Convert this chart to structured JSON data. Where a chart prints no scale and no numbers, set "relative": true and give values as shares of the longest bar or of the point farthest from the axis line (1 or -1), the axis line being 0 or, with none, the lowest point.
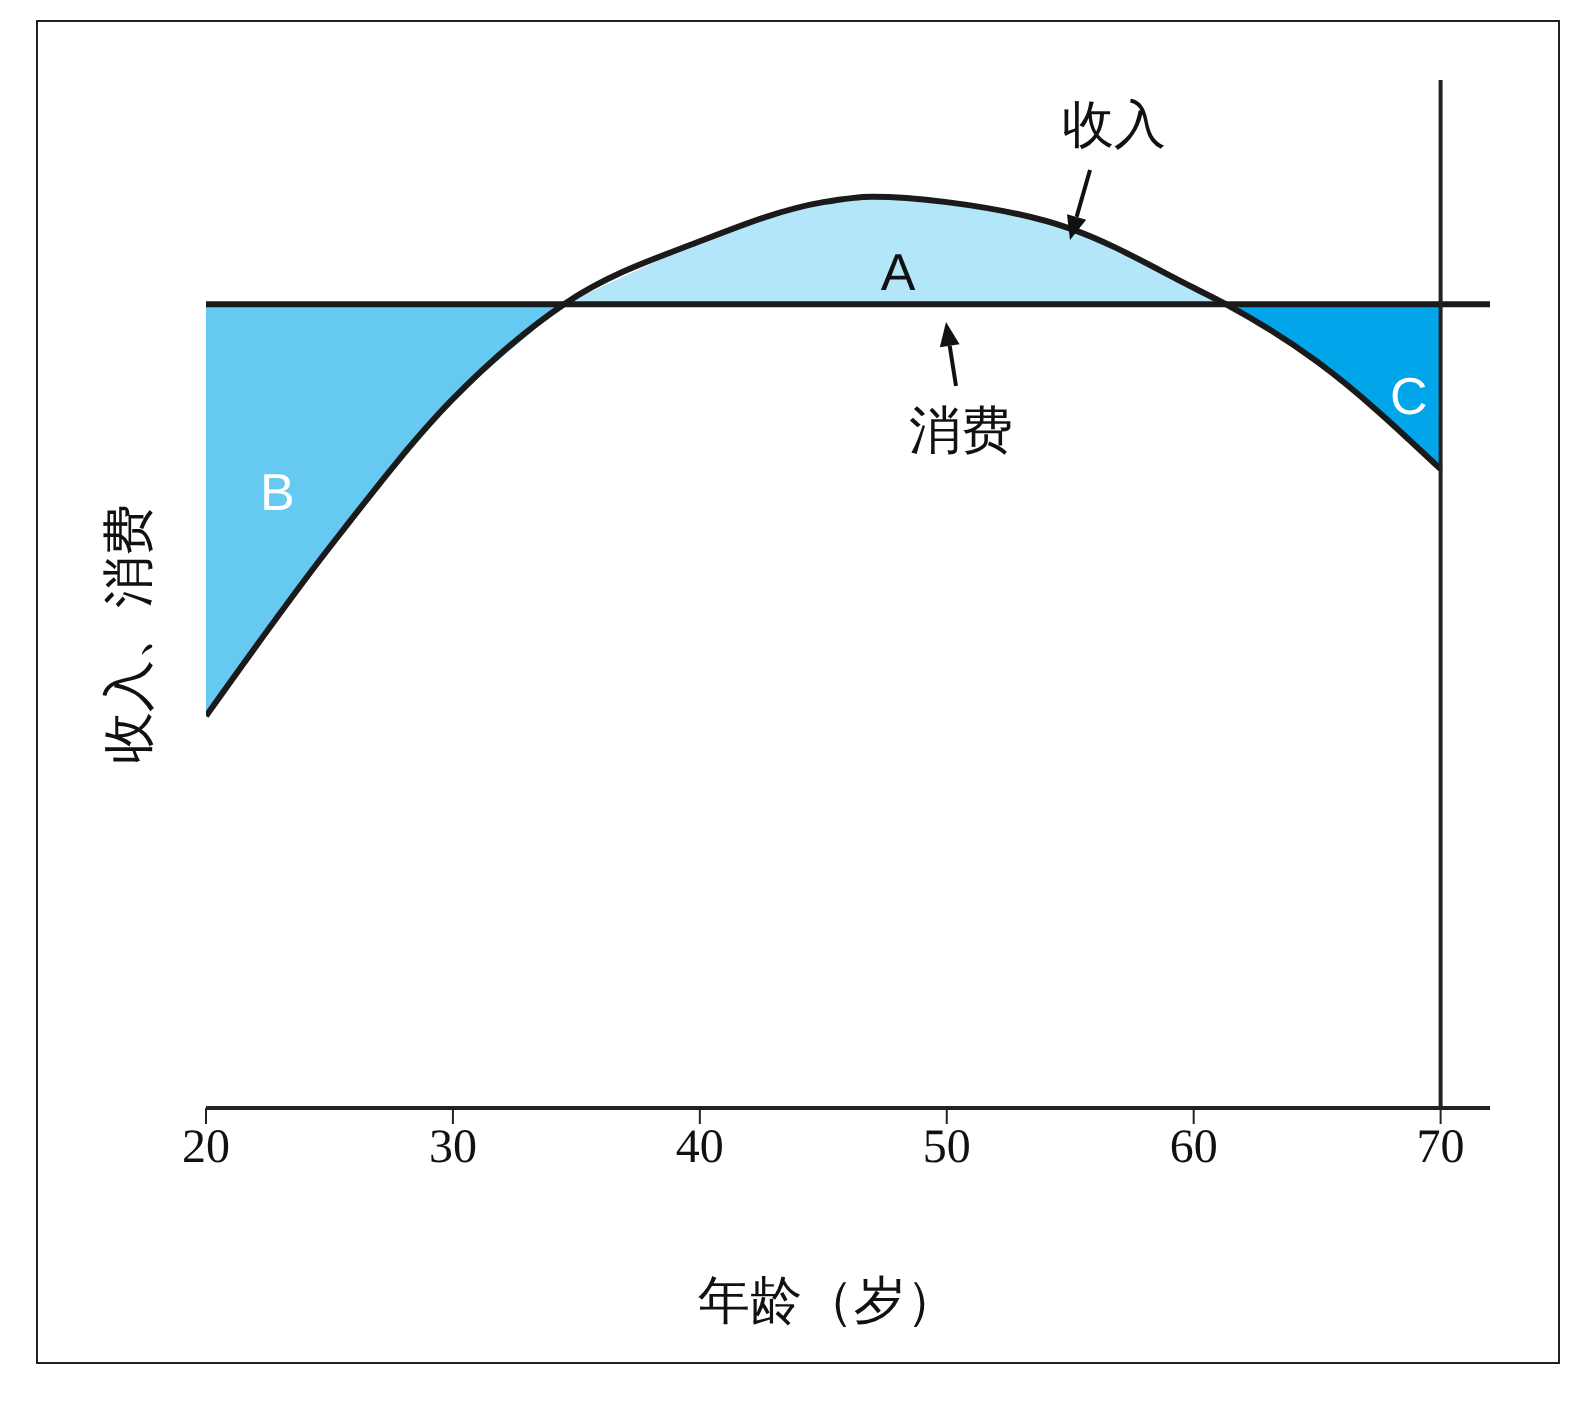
{
  "chart_data": {
    "type": "line",
    "relative": true,
    "xlabel": "年龄（岁）",
    "ylabel": "收入、消费",
    "xlim": [
      20,
      72
    ],
    "xticks": [
      20,
      30,
      40,
      50,
      60,
      70
    ],
    "series": [
      {
        "name": "A",
        "type": "area",
        "color": "#b3e6f8",
        "x": [
          34.5,
          40,
          45,
          47,
          50,
          55,
          60,
          61.3
        ],
        "values": [
          0.882,
          0.951,
          0.994,
          1.0,
          0.994,
          0.965,
          0.9,
          0.882
        ]
      },
      {
        "name": "B",
        "type": "area",
        "color": "#66c9f1",
        "x": [
          20,
          25,
          30,
          34.5
        ],
        "values": [
          0.882,
          0.882,
          0.882,
          0.882
        ]
      },
      {
        "name": "C",
        "type": "area",
        "color": "#00a6e9",
        "x": [
          61.3,
          65,
          70
        ],
        "values": [
          0.882,
          0.882,
          0.882
        ]
      },
      {
        "type": "line",
        "color": "#1a1a1a",
        "x": [
          20,
          25,
          30,
          34.5,
          40,
          45,
          47,
          50,
          55,
          60,
          61.3,
          65,
          70
        ],
        "values": [
          0.43,
          0.615,
          0.778,
          0.882,
          0.951,
          0.994,
          1.0,
          0.994,
          0.965,
          0.9,
          0.882,
          0.819,
          0.701
        ]
      },
      {
        "type": "line",
        "color": "#1a1a1a",
        "x": [
          20,
          72
        ],
        "values": [
          0.882,
          0.882
        ]
      }
    ],
    "ref_lines": [
      {
        "axis": "x",
        "value": 70
      }
    ],
    "annotations": [
      {
        "text": "收入",
        "x": 55,
        "y": 0.965
      },
      {
        "text": "消费",
        "x": 50,
        "y": 0.882
      }
    ]
  }
}
